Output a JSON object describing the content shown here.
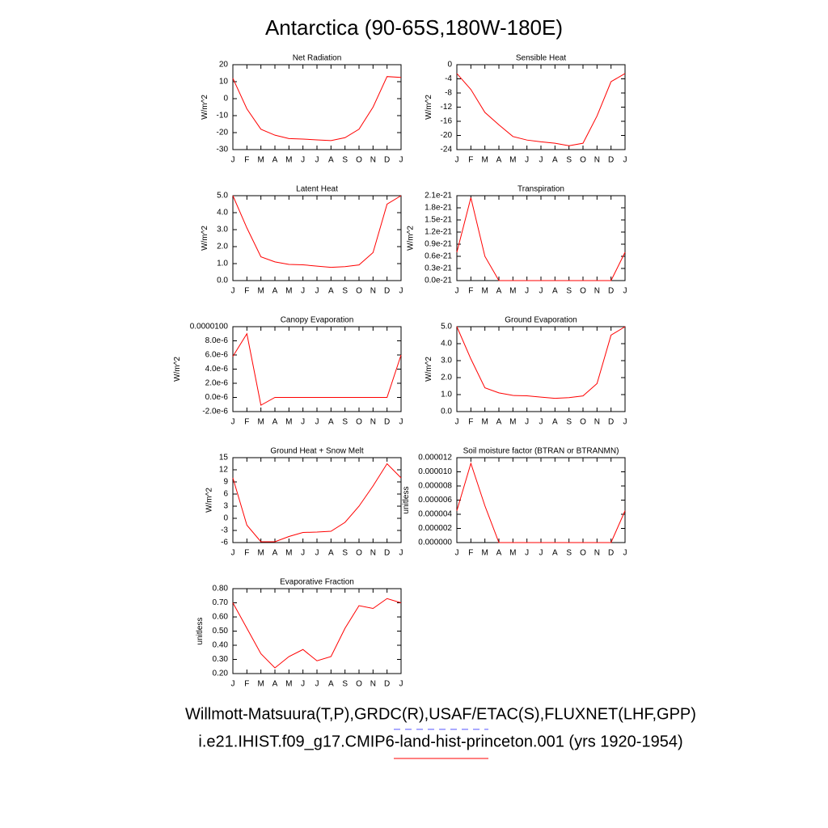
{
  "title": "Antarctica (90-65S,180W-180E)",
  "legend": [
    {
      "name": "Willmott-Matsuura(T,P),GRDC(R),USAF/ETAC(S),FLUXNET(LHF,GPP)",
      "color": "#5555ff",
      "dash": "8,6"
    },
    {
      "name": "i.e21.IHIST.f09_g17.CMIP6-land-hist-princeton.001 (yrs 1920-1954)",
      "color": "#ff0000",
      "dash": "none"
    }
  ],
  "chart_data": [
    {
      "type": "line",
      "title": "Net Radiation",
      "ylabel": "W/m^2",
      "categories": [
        "J",
        "F",
        "M",
        "A",
        "M",
        "J",
        "J",
        "A",
        "S",
        "O",
        "N",
        "D",
        "J"
      ],
      "series": [
        {
          "color": "#ff0000",
          "values": [
            12,
            -6,
            -18,
            -21.5,
            -23.5,
            -23.8,
            -24.3,
            -24.7,
            -23,
            -18,
            -5,
            13,
            12.5
          ]
        }
      ],
      "ylim": [
        -30,
        20
      ],
      "yticks": [
        -30,
        -20,
        -10,
        0,
        10,
        20
      ]
    },
    {
      "type": "line",
      "title": "Sensible Heat",
      "ylabel": "W/m^2",
      "categories": [
        "J",
        "F",
        "M",
        "A",
        "M",
        "J",
        "J",
        "A",
        "S",
        "O",
        "N",
        "D",
        "J"
      ],
      "series": [
        {
          "color": "#ff0000",
          "values": [
            -2.5,
            -7,
            -13.5,
            -17,
            -20.3,
            -21.3,
            -21.8,
            -22.2,
            -22.9,
            -22.2,
            -14.5,
            -4.8,
            -2.5
          ]
        }
      ],
      "ylim": [
        -24,
        0
      ],
      "yticks": [
        -24,
        -20,
        -16,
        -12,
        -8,
        -4,
        0
      ]
    },
    {
      "type": "line",
      "title": "Latent Heat",
      "ylabel": "W/m^2",
      "categories": [
        "J",
        "F",
        "M",
        "A",
        "M",
        "J",
        "J",
        "A",
        "S",
        "O",
        "N",
        "D",
        "J"
      ],
      "series": [
        {
          "color": "#ff0000",
          "values": [
            5.0,
            3.1,
            1.4,
            1.1,
            0.95,
            0.93,
            0.85,
            0.78,
            0.82,
            0.92,
            1.65,
            4.5,
            5.0
          ]
        }
      ],
      "ylim": [
        0,
        5
      ],
      "yticks": [
        {
          "value": 0,
          "label": "0.0"
        },
        {
          "value": 1,
          "label": "1.0"
        },
        {
          "value": 2,
          "label": "2.0"
        },
        {
          "value": 3,
          "label": "3.0"
        },
        {
          "value": 4,
          "label": "4.0"
        },
        {
          "value": 5,
          "label": "5.0"
        }
      ]
    },
    {
      "type": "line",
      "title": "Transpiration",
      "ylabel": "W/m^2",
      "categories": [
        "J",
        "F",
        "M",
        "A",
        "M",
        "J",
        "J",
        "A",
        "S",
        "O",
        "N",
        "D",
        "J"
      ],
      "series": [
        {
          "color": "#ff0000",
          "values": [
            7e-22,
            2.05e-21,
            6e-22,
            0,
            0,
            0,
            0,
            0,
            0,
            0,
            0,
            0,
            7e-22
          ]
        }
      ],
      "ylim": [
        0,
        2.1e-21
      ],
      "yticks": [
        {
          "value": 0,
          "label": "0.0e-21"
        },
        {
          "value": 3e-22,
          "label": "0.3e-21"
        },
        {
          "value": 6e-22,
          "label": "0.6e-21"
        },
        {
          "value": 9e-22,
          "label": "0.9e-21"
        },
        {
          "value": 1.2e-21,
          "label": "1.2e-21"
        },
        {
          "value": 1.5e-21,
          "label": "1.5e-21"
        },
        {
          "value": 1.8e-21,
          "label": "1.8e-21"
        },
        {
          "value": 2.1e-21,
          "label": "2.1e-21"
        }
      ]
    },
    {
      "type": "line",
      "title": "Canopy Evaporation",
      "ylabel": "W/m^2",
      "categories": [
        "J",
        "F",
        "M",
        "A",
        "M",
        "J",
        "J",
        "A",
        "S",
        "O",
        "N",
        "D",
        "J"
      ],
      "series": [
        {
          "color": "#ff0000",
          "values": [
            5.8e-06,
            9e-06,
            -1.1e-06,
            0,
            0,
            0,
            0,
            0,
            0,
            0,
            0,
            0,
            6e-06
          ]
        }
      ],
      "ylim": [
        -2e-06,
        1e-05
      ],
      "yticks": [
        {
          "value": -2e-06,
          "label": "-2.0e-6"
        },
        {
          "value": 0,
          "label": "0.0e-6"
        },
        {
          "value": 2e-06,
          "label": "2.0e-6"
        },
        {
          "value": 4e-06,
          "label": "4.0e-6"
        },
        {
          "value": 6e-06,
          "label": "6.0e-6"
        },
        {
          "value": 8e-06,
          "label": "8.0e-6"
        },
        {
          "value": 1e-05,
          "label": "0.0000100"
        }
      ]
    },
    {
      "type": "line",
      "title": "Ground Evaporation",
      "ylabel": "W/m^2",
      "categories": [
        "J",
        "F",
        "M",
        "A",
        "M",
        "J",
        "J",
        "A",
        "S",
        "O",
        "N",
        "D",
        "J"
      ],
      "series": [
        {
          "color": "#ff0000",
          "values": [
            5.0,
            3.1,
            1.4,
            1.1,
            0.95,
            0.93,
            0.85,
            0.78,
            0.82,
            0.92,
            1.65,
            4.5,
            5.0
          ]
        }
      ],
      "ylim": [
        0,
        5
      ],
      "yticks": [
        {
          "value": 0,
          "label": "0.0"
        },
        {
          "value": 1,
          "label": "1.0"
        },
        {
          "value": 2,
          "label": "2.0"
        },
        {
          "value": 3,
          "label": "3.0"
        },
        {
          "value": 4,
          "label": "4.0"
        },
        {
          "value": 5,
          "label": "5.0"
        }
      ]
    },
    {
      "type": "line",
      "title": "Ground Heat + Snow Melt",
      "ylabel": "W/m^2",
      "categories": [
        "J",
        "F",
        "M",
        "A",
        "M",
        "J",
        "J",
        "A",
        "S",
        "O",
        "N",
        "D",
        "J"
      ],
      "series": [
        {
          "color": "#ff0000",
          "values": [
            10,
            -1.7,
            -5.8,
            -5.8,
            -4.5,
            -3.5,
            -3.4,
            -3.2,
            -1,
            3,
            8,
            13.5,
            10
          ]
        }
      ],
      "ylim": [
        -6,
        15
      ],
      "yticks": [
        -6,
        -3,
        0,
        3,
        6,
        9,
        12,
        15
      ]
    },
    {
      "type": "line",
      "title": "Soil moisture factor (BTRAN or BTRANMN)",
      "ylabel": "unitless",
      "categories": [
        "J",
        "F",
        "M",
        "A",
        "M",
        "J",
        "J",
        "A",
        "S",
        "O",
        "N",
        "D",
        "J"
      ],
      "series": [
        {
          "color": "#ff0000",
          "values": [
            4.5e-06,
            1.12e-05,
            5.2e-06,
            0,
            0,
            0,
            0,
            0,
            0,
            0,
            0,
            0,
            4.5e-06
          ]
        }
      ],
      "ylim": [
        0,
        1.2e-05
      ],
      "yticks": [
        {
          "value": 0,
          "label": "0.000000"
        },
        {
          "value": 2e-06,
          "label": "0.000002"
        },
        {
          "value": 4e-06,
          "label": "0.000004"
        },
        {
          "value": 6e-06,
          "label": "0.000006"
        },
        {
          "value": 8e-06,
          "label": "0.000008"
        },
        {
          "value": 1e-05,
          "label": "0.000010"
        },
        {
          "value": 1.2e-05,
          "label": "0.000012"
        }
      ]
    },
    {
      "type": "line",
      "title": "Evaporative Fraction",
      "ylabel": "unitless",
      "categories": [
        "J",
        "F",
        "M",
        "A",
        "M",
        "J",
        "J",
        "A",
        "S",
        "O",
        "N",
        "D",
        "J"
      ],
      "series": [
        {
          "color": "#ff0000",
          "values": [
            0.7,
            0.52,
            0.34,
            0.24,
            0.32,
            0.37,
            0.29,
            0.32,
            0.52,
            0.68,
            0.66,
            0.73,
            0.7
          ]
        }
      ],
      "ylim": [
        0.2,
        0.8
      ],
      "yticks": [
        {
          "value": 0.2,
          "label": "0.20"
        },
        {
          "value": 0.3,
          "label": "0.30"
        },
        {
          "value": 0.4,
          "label": "0.40"
        },
        {
          "value": 0.5,
          "label": "0.50"
        },
        {
          "value": 0.6,
          "label": "0.60"
        },
        {
          "value": 0.7,
          "label": "0.70"
        },
        {
          "value": 0.8,
          "label": "0.80"
        }
      ]
    }
  ]
}
